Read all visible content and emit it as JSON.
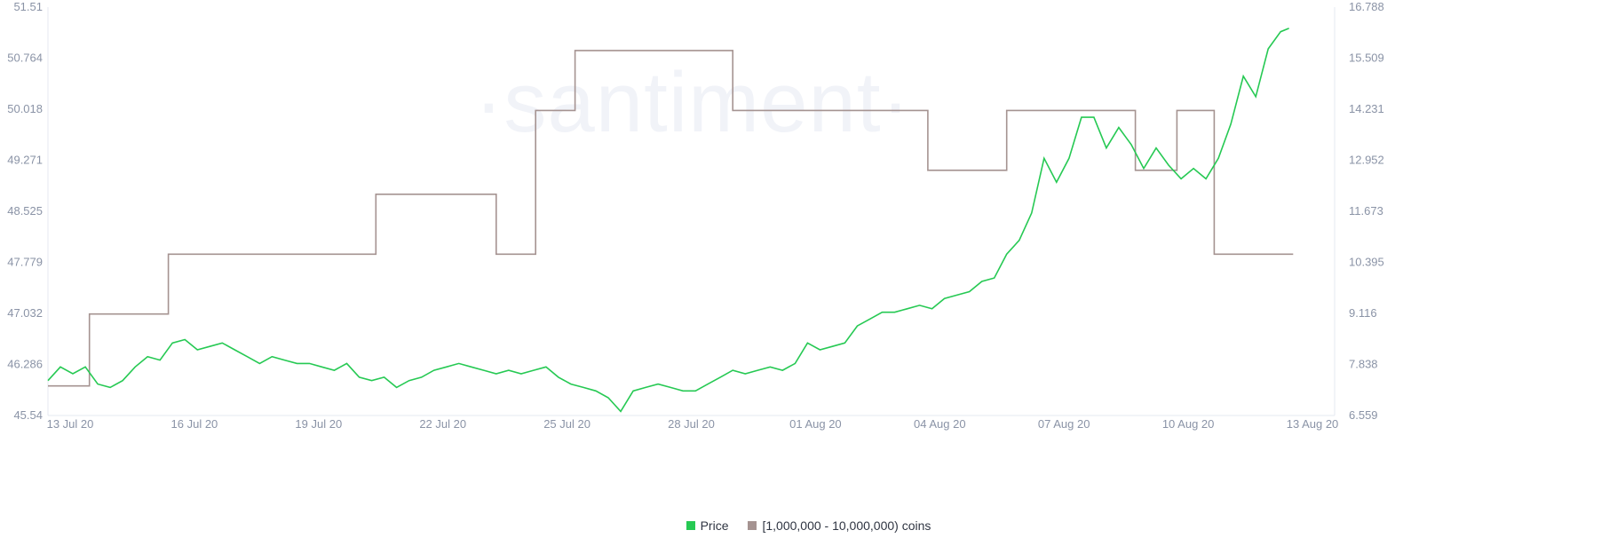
{
  "watermark": "·santiment·",
  "legend": [
    {
      "label": "Price",
      "color": "#26c953"
    },
    {
      "label": "[1,000,000 - 10,000,000) coins",
      "color": "#a59391"
    }
  ],
  "chart_data": {
    "type": "line",
    "title": "",
    "x_tick_labels": [
      "13 Jul 20",
      "16 Jul 20",
      "19 Jul 20",
      "22 Jul 20",
      "25 Jul 20",
      "28 Jul 20",
      "01 Aug 20",
      "04 Aug 20",
      "07 Aug 20",
      "10 Aug 20",
      "13 Aug 20"
    ],
    "x_range_days": [
      0,
      31
    ],
    "y_left": {
      "min": 45.54,
      "max": 51.51,
      "ticks": [
        "51.51",
        "50.764",
        "50.018",
        "49.271",
        "48.525",
        "47.779",
        "47.032",
        "46.286",
        "45.54"
      ]
    },
    "y_right": {
      "min": 6.559,
      "max": 16.788,
      "ticks": [
        "16.788",
        "15.509",
        "14.231",
        "12.952",
        "11.673",
        "10.395",
        "9.116",
        "7.838",
        "6.559"
      ]
    },
    "grid": false,
    "legend_position": "bottom-center",
    "series": [
      {
        "name": "Price",
        "axis": "left",
        "color": "#26c953",
        "x_days": [
          0,
          0.3,
          0.6,
          0.9,
          1.2,
          1.5,
          1.8,
          2.1,
          2.4,
          2.7,
          3.0,
          3.3,
          3.6,
          3.9,
          4.2,
          4.5,
          4.8,
          5.1,
          5.4,
          5.7,
          6.0,
          6.3,
          6.6,
          6.9,
          7.2,
          7.5,
          7.8,
          8.1,
          8.4,
          8.7,
          9.0,
          9.3,
          9.6,
          9.9,
          10.2,
          10.5,
          10.8,
          11.1,
          11.4,
          11.7,
          12.0,
          12.3,
          12.6,
          12.9,
          13.2,
          13.5,
          13.8,
          14.1,
          14.4,
          14.7,
          15.0,
          15.3,
          15.6,
          15.9,
          16.2,
          16.5,
          16.8,
          17.1,
          17.4,
          17.7,
          18.0,
          18.3,
          18.6,
          18.9,
          19.2,
          19.5,
          19.8,
          20.1,
          20.4,
          20.7,
          21.0,
          21.3,
          21.6,
          21.9,
          22.2,
          22.5,
          22.8,
          23.1,
          23.4,
          23.7,
          24.0,
          24.3,
          24.6,
          24.9,
          25.2,
          25.5,
          25.8,
          26.1,
          26.4,
          26.7,
          27.0,
          27.3,
          27.6,
          27.9,
          28.2,
          28.5,
          28.8,
          29.1,
          29.4,
          29.7,
          29.9
        ],
        "values": [
          46.05,
          46.25,
          46.15,
          46.25,
          46.0,
          45.95,
          46.05,
          46.25,
          46.4,
          46.35,
          46.6,
          46.65,
          46.5,
          46.55,
          46.6,
          46.5,
          46.4,
          46.3,
          46.4,
          46.35,
          46.3,
          46.3,
          46.25,
          46.2,
          46.3,
          46.1,
          46.05,
          46.1,
          45.95,
          46.05,
          46.1,
          46.2,
          46.25,
          46.3,
          46.25,
          46.2,
          46.15,
          46.2,
          46.15,
          46.2,
          46.25,
          46.1,
          46.0,
          45.95,
          45.9,
          45.8,
          45.6,
          45.9,
          45.95,
          46.0,
          45.95,
          45.9,
          45.9,
          46.0,
          46.1,
          46.2,
          46.15,
          46.2,
          46.25,
          46.2,
          46.3,
          46.6,
          46.5,
          46.55,
          46.6,
          46.85,
          46.95,
          47.05,
          47.05,
          47.1,
          47.15,
          47.1,
          47.25,
          47.3,
          47.35,
          47.5,
          47.55,
          47.9,
          48.1,
          48.5,
          49.3,
          48.95,
          49.3,
          49.9,
          49.9,
          49.45,
          49.75,
          49.5,
          49.15,
          49.45,
          49.2,
          49.0,
          49.15,
          49.0,
          49.3,
          49.8,
          50.5,
          50.2,
          50.9,
          51.15,
          51.2
        ]
      },
      {
        "name": "[1,000,000 - 10,000,000) coins",
        "axis": "right",
        "color": "#a59391",
        "step_times_days": [
          0,
          1.0,
          2.9,
          7.9,
          10.8,
          11.75,
          12.7,
          16.5,
          21.2,
          23.1,
          26.2,
          27.2,
          28.1,
          29.0,
          30.0
        ],
        "step_values": [
          7.3,
          9.1,
          10.6,
          12.1,
          10.6,
          14.2,
          15.7,
          14.2,
          12.7,
          14.2,
          12.7,
          14.2,
          10.6,
          10.6,
          10.6
        ]
      }
    ]
  }
}
